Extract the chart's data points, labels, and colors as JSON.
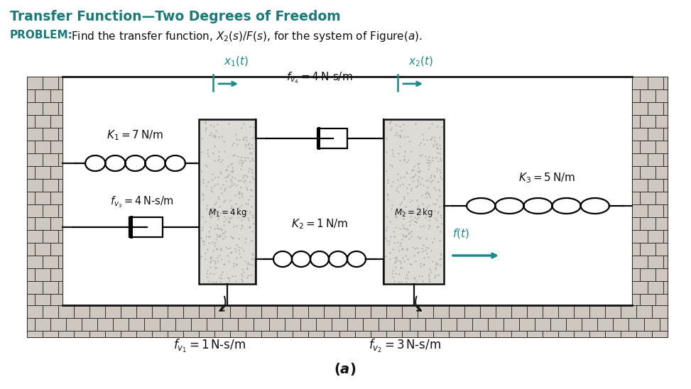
{
  "title": "Transfer Function—Two Degrees of Freedom",
  "title_color": "#1a7a7a",
  "problem_bold": "PROBLEM:",
  "problem_color": "#1a7a7a",
  "bg_color": "#ffffff",
  "teal": "#1a8a8a",
  "black": "#111111",
  "fig_width": 9.73,
  "fig_height": 5.48
}
